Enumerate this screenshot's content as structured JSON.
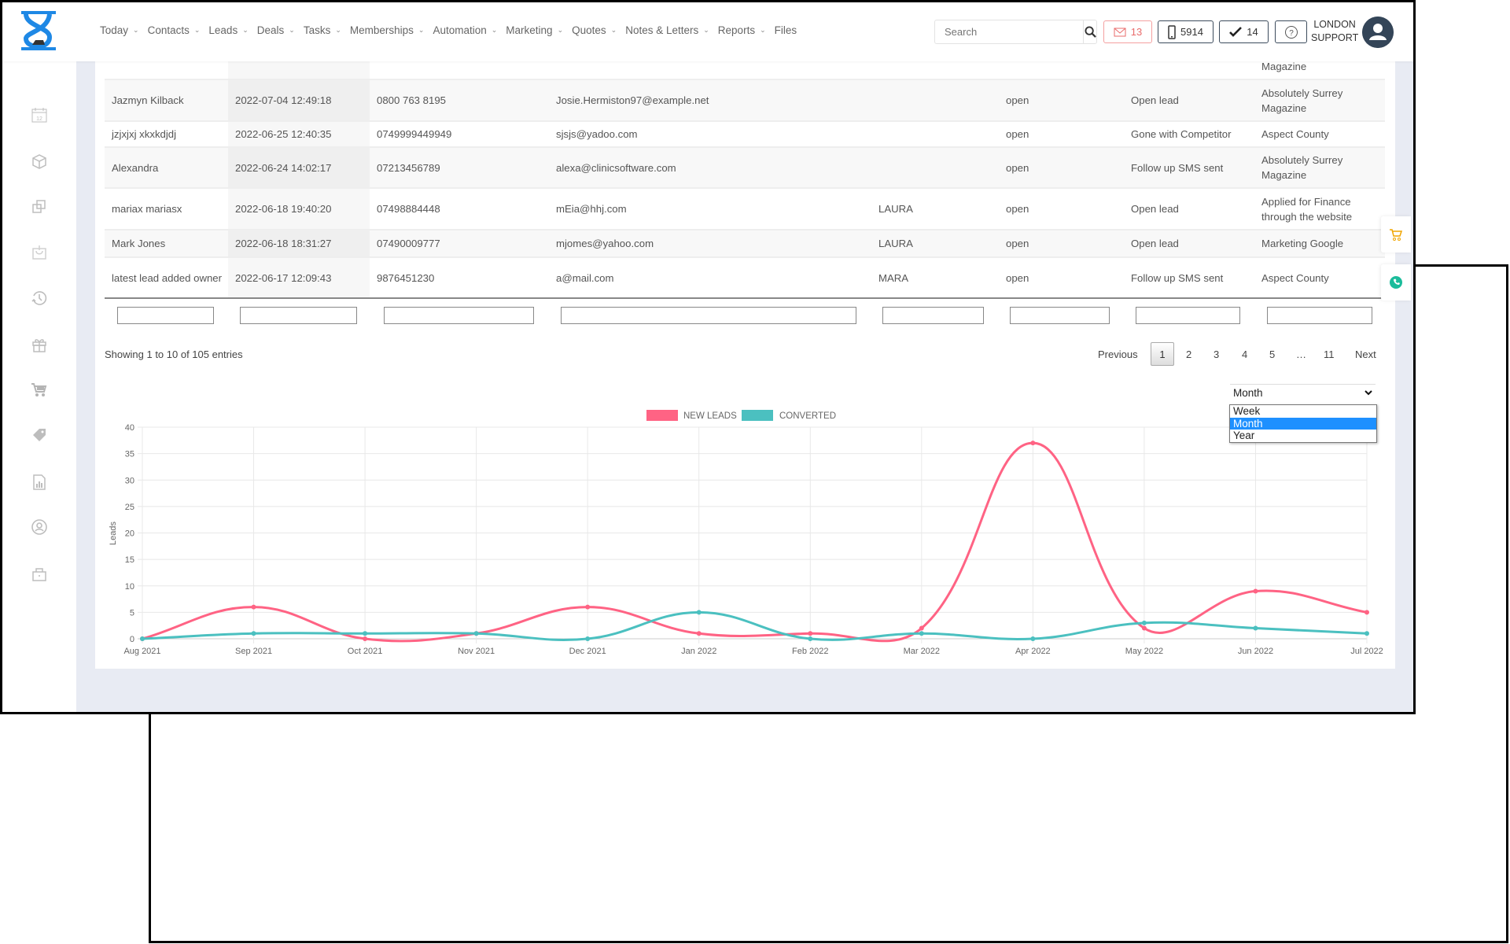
{
  "header": {
    "nav": [
      {
        "label": "Today",
        "dropdown": true
      },
      {
        "label": "Contacts",
        "dropdown": true
      },
      {
        "label": "Leads",
        "dropdown": true
      },
      {
        "label": "Deals",
        "dropdown": true
      },
      {
        "label": "Tasks",
        "dropdown": true
      },
      {
        "label": "Memberships",
        "dropdown": true
      },
      {
        "label": "Automation",
        "dropdown": true
      },
      {
        "label": "Marketing",
        "dropdown": true
      },
      {
        "label": "Quotes",
        "dropdown": true
      },
      {
        "label": "Notes & Letters",
        "dropdown": true
      },
      {
        "label": "Reports",
        "dropdown": true
      },
      {
        "label": "Files",
        "dropdown": false
      }
    ],
    "search_placeholder": "Search",
    "mail_count": "13",
    "phone_count": "5914",
    "tasks_count": "14",
    "help_label": "?",
    "user_line1": "LONDON",
    "user_line2": "SUPPORT"
  },
  "sidebar": {
    "icons": [
      "calendar-icon",
      "box-icon",
      "copy-icon",
      "basket-icon",
      "history-icon",
      "gift-icon",
      "cart-icon",
      "tag-icon",
      "report-icon",
      "user-circle-icon",
      "lock-icon"
    ]
  },
  "table": {
    "rows": [
      {
        "name": "",
        "date": "",
        "phone": "",
        "email": "",
        "owner": "",
        "status": "",
        "stage": "",
        "source": "Magazine",
        "partial": true
      },
      {
        "name": "Jazmyn Kilback",
        "date": "2022-07-04 12:49:18",
        "phone": "0800 763 8195",
        "email": "Josie.Hermiston97@example.net",
        "owner": "",
        "status": "open",
        "stage": "Open lead",
        "source": "Absolutely Surrey Magazine"
      },
      {
        "name": "jzjxjxj xkxkdjdj",
        "date": "2022-06-25 12:40:35",
        "phone": "0749999449949",
        "email": "sjsjs@yadoo.com",
        "owner": "",
        "status": "open",
        "stage": "Gone with Competitor",
        "source": "Aspect County"
      },
      {
        "name": "Alexandra",
        "date": "2022-06-24 14:02:17",
        "phone": "07213456789",
        "email": "alexa@clinicsoftware.com",
        "owner": "",
        "status": "open",
        "stage": "Follow up SMS sent",
        "source": "Absolutely Surrey Magazine"
      },
      {
        "name": "mariax mariasx",
        "date": "2022-06-18 19:40:20",
        "phone": "07498884448",
        "email": "mEia@hhj.com",
        "owner": "LAURA",
        "status": "open",
        "stage": "Open lead",
        "source": "Applied for Finance through the website"
      },
      {
        "name": "Mark Jones",
        "date": "2022-06-18 18:31:27",
        "phone": "07490009777",
        "email": "mjomes@yahoo.com",
        "owner": "LAURA",
        "status": "open",
        "stage": "Open lead",
        "source": "Marketing Google"
      },
      {
        "name": "latest lead added owner",
        "date": "2022-06-17 12:09:43",
        "phone": "9876451230",
        "email": "a@mail.com",
        "owner": "MARA",
        "status": "open",
        "stage": "Follow up SMS sent",
        "source": "Aspect County"
      }
    ],
    "showing": "Showing 1 to 10 of 105 entries",
    "pagination": {
      "previous": "Previous",
      "pages": [
        "1",
        "2",
        "3",
        "4",
        "5",
        "…",
        "11"
      ],
      "current": "1",
      "next": "Next"
    }
  },
  "period_select": {
    "value": "Month",
    "options": [
      "Week",
      "Month",
      "Year"
    ],
    "highlighted": "Month"
  },
  "chart_data": {
    "type": "line",
    "categories": [
      "Aug 2021",
      "Sep 2021",
      "Oct 2021",
      "Nov 2021",
      "Dec 2021",
      "Jan 2022",
      "Feb 2022",
      "Mar 2022",
      "Apr 2022",
      "May 2022",
      "Jun 2022",
      "Jul 2022"
    ],
    "series": [
      {
        "name": "NEW LEADS",
        "color": "#ff6384",
        "values": [
          0,
          6,
          0,
          1,
          6,
          1,
          1,
          2,
          37,
          2,
          9,
          5
        ]
      },
      {
        "name": "CONVERTED",
        "color": "#4bc0c0",
        "values": [
          0,
          1,
          1,
          1,
          0,
          5,
          0,
          1,
          0,
          3,
          2,
          1
        ]
      }
    ],
    "ylabel": "Leads",
    "ylim": [
      0,
      40
    ],
    "yticks": [
      0,
      5,
      10,
      15,
      20,
      25,
      30,
      35,
      40
    ],
    "grid": true,
    "legend": "top",
    "smooth": true
  }
}
